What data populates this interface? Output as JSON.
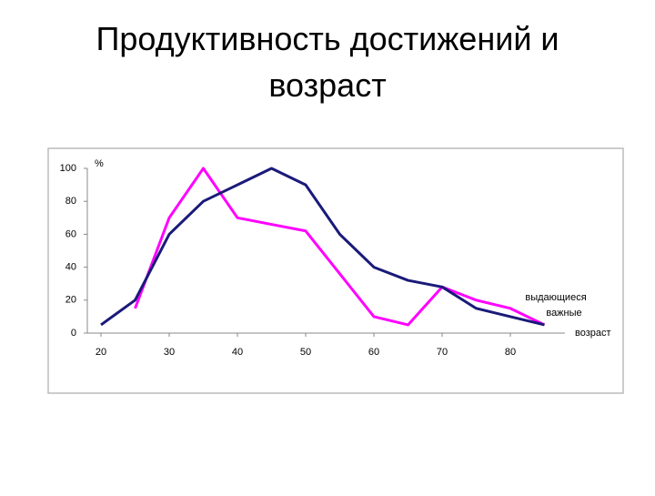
{
  "chart_data": {
    "type": "line",
    "title": "Продуктивность достижений и возраст",
    "y_label": "%",
    "x_label": "возраст",
    "x": [
      20,
      25,
      30,
      35,
      40,
      45,
      50,
      55,
      60,
      65,
      70,
      75,
      80,
      85
    ],
    "series": [
      {
        "name": "выдающиеся",
        "color": "#ff00ff",
        "values": [
          null,
          15,
          70,
          100,
          70,
          66,
          62,
          36,
          10,
          5,
          28,
          20,
          15,
          5
        ]
      },
      {
        "name": "важные",
        "color": "#1a1a7a",
        "values": [
          5,
          20,
          60,
          80,
          90,
          100,
          90,
          60,
          40,
          32,
          28,
          15,
          10,
          5
        ]
      }
    ],
    "xlim": [
      18,
      88
    ],
    "xticks": [
      20,
      30,
      40,
      50,
      60,
      70,
      80
    ],
    "ylim": [
      0,
      100
    ],
    "yticks": [
      0,
      20,
      40,
      60,
      80,
      100
    ],
    "grid": false
  }
}
